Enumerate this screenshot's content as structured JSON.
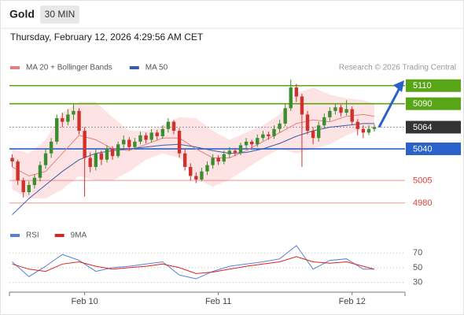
{
  "header": {
    "title": "Gold",
    "interval": "30 MIN",
    "timestamp": "Thursday, February 12, 2026 4:29:56 AM CET"
  },
  "chart_data": [
    {
      "type": "candlestick",
      "source": "Research © 2026 Trading Central",
      "xlim": [
        -0.5,
        70.5
      ],
      "ylim": [
        4965,
        5122
      ],
      "up_color": "#3c8d2f",
      "down_color": "#d0312d",
      "open": [
        5030,
        5026,
        5005,
        4992,
        5000,
        5008,
        5022,
        5035,
        5048,
        5074,
        5070,
        5078,
        5082,
        5060,
        5030,
        5020,
        5035,
        5028,
        5040,
        5032,
        5045,
        5050,
        5042,
        5048,
        5055,
        5050,
        5058,
        5054,
        5062,
        5070,
        5060,
        5035,
        5020,
        5010,
        5006,
        5015,
        5022,
        5030,
        5026,
        5034,
        5038,
        5036,
        5044,
        5048,
        5045,
        5052,
        5056,
        5054,
        5062,
        5068,
        5085,
        5108,
        5098,
        5078,
        5060,
        5052,
        5066,
        5075,
        5082,
        5086,
        5080,
        5084,
        5070,
        5062,
        5058,
        5062
      ],
      "high": [
        5034,
        5028,
        5008,
        5004,
        5012,
        5026,
        5040,
        5052,
        5078,
        5080,
        5084,
        5090,
        5085,
        5064,
        5036,
        5040,
        5038,
        5044,
        5043,
        5048,
        5055,
        5053,
        5052,
        5059,
        5058,
        5062,
        5061,
        5066,
        5074,
        5072,
        5063,
        5040,
        5024,
        5014,
        5019,
        5026,
        5034,
        5033,
        5038,
        5042,
        5041,
        5047,
        5052,
        5050,
        5056,
        5060,
        5059,
        5066,
        5072,
        5090,
        5117,
        5112,
        5101,
        5082,
        5064,
        5070,
        5079,
        5086,
        5090,
        5089,
        5094,
        5087,
        5073,
        5066,
        5066,
        5067
      ],
      "low": [
        5020,
        5000,
        4986,
        4989,
        4996,
        5004,
        5018,
        5030,
        5045,
        5064,
        5066,
        5072,
        5056,
        4987,
        5014,
        5016,
        5022,
        5025,
        5028,
        5030,
        5040,
        5038,
        5039,
        5045,
        5046,
        5047,
        5050,
        5051,
        5058,
        5056,
        5030,
        5016,
        5005,
        5002,
        5004,
        5011,
        5018,
        5022,
        5023,
        5030,
        5032,
        5033,
        5040,
        5041,
        5042,
        5049,
        5050,
        5051,
        5058,
        5065,
        5082,
        5092,
        5020,
        5056,
        5045,
        5048,
        5062,
        5071,
        5078,
        5076,
        5077,
        5066,
        5055,
        5052,
        5055,
        5059
      ],
      "close": [
        5026,
        5005,
        4992,
        5000,
        5008,
        5022,
        5035,
        5048,
        5074,
        5070,
        5078,
        5082,
        5060,
        5030,
        5020,
        5035,
        5028,
        5040,
        5032,
        5045,
        5050,
        5042,
        5048,
        5055,
        5050,
        5058,
        5054,
        5062,
        5070,
        5060,
        5035,
        5020,
        5010,
        5006,
        5015,
        5022,
        5030,
        5026,
        5034,
        5038,
        5036,
        5044,
        5048,
        5045,
        5052,
        5056,
        5054,
        5062,
        5068,
        5085,
        5108,
        5098,
        5078,
        5060,
        5052,
        5066,
        5075,
        5082,
        5086,
        5080,
        5084,
        5070,
        5062,
        5058,
        5062,
        5064
      ],
      "series": [
        {
          "name": "MA 20 + Bollinger Bands",
          "color": "#e57f7f",
          "band_color": "#fcdada",
          "x": [
            0,
            3,
            6,
            9,
            12,
            15,
            18,
            21,
            24,
            27,
            30,
            33,
            36,
            39,
            42,
            45,
            48,
            51,
            54,
            57,
            60,
            63,
            65
          ],
          "values": [
            5020,
            5010,
            5015,
            5035,
            5055,
            5050,
            5040,
            5038,
            5045,
            5052,
            5052,
            5040,
            5030,
            5030,
            5038,
            5048,
            5058,
            5068,
            5072,
            5070,
            5076,
            5078,
            5076
          ],
          "upper": [
            5040,
            5035,
            5050,
            5080,
            5092,
            5092,
            5075,
            5060,
            5060,
            5066,
            5075,
            5074,
            5060,
            5050,
            5058,
            5066,
            5078,
            5102,
            5108,
            5100,
            5096,
            5094,
            5090
          ],
          "lower": [
            4995,
            4985,
            4985,
            4995,
            5010,
            5005,
            5005,
            5015,
            5028,
            5035,
            5030,
            5008,
            4998,
            5006,
            5018,
            5030,
            5040,
            5035,
            5040,
            5045,
            5055,
            5062,
            5062
          ]
        },
        {
          "name": "MA 50",
          "color": "#3a5ea8",
          "x": [
            0,
            3,
            6,
            9,
            12,
            15,
            18,
            21,
            24,
            27,
            30,
            33,
            36,
            39,
            42,
            45,
            48,
            51,
            54,
            57,
            60,
            63,
            65
          ],
          "values": [
            4967,
            4985,
            5000,
            5015,
            5028,
            5035,
            5038,
            5040,
            5042,
            5044,
            5045,
            5042,
            5038,
            5035,
            5036,
            5040,
            5046,
            5054,
            5060,
            5064,
            5066,
            5068,
            5068
          ]
        }
      ],
      "levels": [
        {
          "value": 5110,
          "color": "#58a618",
          "boxed": true,
          "dashed": false
        },
        {
          "value": 5090,
          "color": "#58a618",
          "boxed": true,
          "dashed": false
        },
        {
          "value": 5064,
          "color": "#333333",
          "boxed": true,
          "dashed": true
        },
        {
          "value": 5040,
          "color": "#2a62c9",
          "boxed": true,
          "dashed": false
        },
        {
          "value": 5005,
          "color": "#e0403a",
          "boxed": false,
          "dashed": false
        },
        {
          "value": 4980,
          "color": "#e0403a",
          "boxed": false,
          "dashed": false
        }
      ]
    },
    {
      "type": "line",
      "xlim": [
        -0.5,
        70.5
      ],
      "ylim": [
        20,
        82
      ],
      "yticks": [
        30,
        50,
        70
      ],
      "grid": true,
      "xticks": [
        {
          "value": 13,
          "label": "Feb 10"
        },
        {
          "value": 37,
          "label": "Feb 11"
        },
        {
          "value": 61,
          "label": "Feb 12"
        }
      ],
      "series": [
        {
          "name": "RSI",
          "color": "#5b7fd6",
          "x": [
            0,
            3,
            6,
            9,
            12,
            15,
            18,
            21,
            24,
            27,
            30,
            33,
            36,
            39,
            42,
            45,
            48,
            51,
            54,
            57,
            60,
            63,
            65
          ],
          "values": [
            58,
            38,
            52,
            68,
            60,
            45,
            50,
            52,
            55,
            58,
            40,
            35,
            45,
            52,
            55,
            58,
            62,
            80,
            48,
            60,
            62,
            48,
            48
          ]
        },
        {
          "name": "9MA",
          "color": "#d9251d",
          "x": [
            0,
            3,
            6,
            9,
            12,
            15,
            18,
            21,
            24,
            27,
            30,
            33,
            36,
            39,
            42,
            45,
            48,
            51,
            54,
            57,
            60,
            63,
            65
          ],
          "values": [
            55,
            48,
            45,
            55,
            58,
            52,
            48,
            50,
            52,
            55,
            50,
            42,
            44,
            48,
            52,
            55,
            58,
            65,
            58,
            56,
            58,
            52,
            48
          ]
        }
      ]
    }
  ]
}
